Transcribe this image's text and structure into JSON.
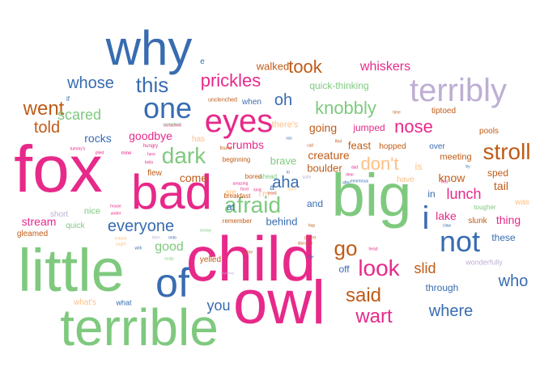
{
  "palette": {
    "pink": "#e7298a",
    "green": "#7fc97f",
    "blue": "#386cb0",
    "purple": "#beaed4",
    "brown": "#bf5b17",
    "orange": "#fdc086",
    "yellow": "#f0e442",
    "grey": "#666666"
  },
  "words": [
    {
      "text": "fox",
      "color": "pink",
      "weight": 82
    },
    {
      "text": "child",
      "color": "pink",
      "weight": 78
    },
    {
      "text": "owl",
      "color": "pink",
      "weight": 76
    },
    {
      "text": "little",
      "color": "green",
      "weight": 74
    },
    {
      "text": "big",
      "color": "green",
      "weight": 74
    },
    {
      "text": "terrible",
      "color": "green",
      "weight": 64
    },
    {
      "text": "bad",
      "color": "pink",
      "weight": 60
    },
    {
      "text": "why",
      "color": "blue",
      "weight": 60
    },
    {
      "text": "of",
      "color": "blue",
      "weight": 50
    },
    {
      "text": "eyes",
      "color": "pink",
      "weight": 40
    },
    {
      "text": "terribly",
      "color": "purple",
      "weight": 40
    },
    {
      "text": "i",
      "color": "blue",
      "weight": 40
    },
    {
      "text": "one",
      "color": "blue",
      "weight": 36
    },
    {
      "text": "not",
      "color": "blue",
      "weight": 36
    },
    {
      "text": "stroll",
      "color": "brown",
      "weight": 28
    },
    {
      "text": "dark",
      "color": "green",
      "weight": 28
    },
    {
      "text": "look",
      "color": "pink",
      "weight": 28
    },
    {
      "text": "afraid",
      "color": "green",
      "weight": 28
    },
    {
      "text": "go",
      "color": "brown",
      "weight": 26
    },
    {
      "text": "this",
      "color": "blue",
      "weight": 26
    },
    {
      "text": "wart",
      "color": "pink",
      "weight": 24
    },
    {
      "text": "said",
      "color": "brown",
      "weight": 24
    },
    {
      "text": "went",
      "color": "brown",
      "weight": 24
    },
    {
      "text": "don't",
      "color": "orange",
      "weight": 22
    },
    {
      "text": "took",
      "color": "brown",
      "weight": 22
    },
    {
      "text": "prickles",
      "color": "pink",
      "weight": 22
    },
    {
      "text": "knobbly",
      "color": "green",
      "weight": 22
    },
    {
      "text": "nose",
      "color": "pink",
      "weight": 22
    },
    {
      "text": "everyone",
      "color": "blue",
      "weight": 20
    },
    {
      "text": "told",
      "color": "brown",
      "weight": 20
    },
    {
      "text": "whose",
      "color": "blue",
      "weight": 20
    },
    {
      "text": "aha",
      "color": "blue",
      "weight": 20
    },
    {
      "text": "oh",
      "color": "blue",
      "weight": 20
    },
    {
      "text": "where",
      "color": "blue",
      "weight": 20
    },
    {
      "text": "who",
      "color": "blue",
      "weight": 20
    },
    {
      "text": "you",
      "color": "blue",
      "weight": 18
    },
    {
      "text": "scared",
      "color": "green",
      "weight": 18
    },
    {
      "text": "lunch",
      "color": "pink",
      "weight": 18
    },
    {
      "text": "slid",
      "color": "brown",
      "weight": 18
    },
    {
      "text": "whiskers",
      "color": "pink",
      "weight": 16
    },
    {
      "text": "good",
      "color": "green",
      "weight": 16
    },
    {
      "text": "goodbye",
      "color": "pink",
      "weight": 14
    },
    {
      "text": "rocks",
      "color": "blue",
      "weight": 14
    },
    {
      "text": "come",
      "color": "brown",
      "weight": 14
    },
    {
      "text": "crumbs",
      "color": "pink",
      "weight": 14
    },
    {
      "text": "creature",
      "color": "brown",
      "weight": 14
    },
    {
      "text": "know",
      "color": "brown",
      "weight": 14
    },
    {
      "text": "lake",
      "color": "pink",
      "weight": 14
    },
    {
      "text": "tail",
      "color": "brown",
      "weight": 14
    },
    {
      "text": "stream",
      "color": "pink",
      "weight": 14
    },
    {
      "text": "going",
      "color": "brown",
      "weight": 14
    },
    {
      "text": "thing",
      "color": "pink",
      "weight": 14
    },
    {
      "text": "behind",
      "color": "blue",
      "weight": 13
    },
    {
      "text": "brave",
      "color": "green",
      "weight": 13
    },
    {
      "text": "boulder",
      "color": "brown",
      "weight": 13
    },
    {
      "text": "feast",
      "color": "brown",
      "weight": 13
    },
    {
      "text": "walked",
      "color": "brown",
      "weight": 13
    },
    {
      "text": "jumped",
      "color": "pink",
      "weight": 12
    },
    {
      "text": "through",
      "color": "blue",
      "weight": 12
    },
    {
      "text": "quick-thinking",
      "color": "green",
      "weight": 12
    },
    {
      "text": "sped",
      "color": "brown",
      "weight": 12
    },
    {
      "text": "these",
      "color": "blue",
      "weight": 12
    },
    {
      "text": "in",
      "color": "blue",
      "weight": 12
    },
    {
      "text": "off",
      "color": "blue",
      "weight": 12
    },
    {
      "text": "and",
      "color": "blue",
      "weight": 12
    },
    {
      "text": "is",
      "color": "orange",
      "weight": 12
    },
    {
      "text": "at",
      "color": "blue",
      "weight": 12
    },
    {
      "text": "nice",
      "color": "green",
      "weight": 11
    },
    {
      "text": "meeting",
      "color": "brown",
      "weight": 11
    },
    {
      "text": "hopped",
      "color": "brown",
      "weight": 10
    },
    {
      "text": "flew",
      "color": "brown",
      "weight": 10
    },
    {
      "text": "short",
      "color": "purple",
      "weight": 10
    },
    {
      "text": "quick",
      "color": "green",
      "weight": 10
    },
    {
      "text": "slunk",
      "color": "brown",
      "weight": 10
    },
    {
      "text": "has",
      "color": "orange",
      "weight": 10
    },
    {
      "text": "have",
      "color": "orange",
      "weight": 10
    },
    {
      "text": "was",
      "color": "orange",
      "weight": 10
    },
    {
      "text": "over",
      "color": "blue",
      "weight": 10
    },
    {
      "text": "are",
      "color": "orange",
      "weight": 10
    },
    {
      "text": "tiptoed",
      "color": "brown",
      "weight": 10
    },
    {
      "text": "when",
      "color": "blue",
      "weight": 10
    },
    {
      "text": "pools",
      "color": "brown",
      "weight": 10
    },
    {
      "text": "there's",
      "color": "orange",
      "weight": 11
    },
    {
      "text": "I'm",
      "color": "orange",
      "weight": 10
    },
    {
      "text": "a",
      "color": "blue",
      "weight": 10
    },
    {
      "text": "e",
      "color": "blue",
      "weight": 10
    },
    {
      "text": "yelled",
      "color": "brown",
      "weight": 10
    },
    {
      "text": "gleamed",
      "color": "brown",
      "weight": 10
    },
    {
      "text": "what",
      "color": "blue",
      "weight": 9
    },
    {
      "text": "what's",
      "color": "orange",
      "weight": 10
    },
    {
      "text": "wonderfully",
      "color": "purple",
      "weight": 9
    },
    {
      "text": "tougher",
      "color": "green",
      "weight": 8
    },
    {
      "text": "remember",
      "color": "brown",
      "weight": 8
    },
    {
      "text": "beginning",
      "color": "brown",
      "weight": 8
    },
    {
      "text": "breakfast",
      "color": "brown",
      "weight": 8
    },
    {
      "text": "bored",
      "color": "brown",
      "weight": 8
    },
    {
      "text": "ahead",
      "color": "green",
      "weight": 8
    },
    {
      "text": "if",
      "color": "blue",
      "weight": 8
    },
    {
      "text": "unclenched",
      "color": "brown",
      "weight": 7
    },
    {
      "text": "scratched",
      "color": "pink",
      "weight": 5
    },
    {
      "text": "amazing",
      "color": "pink",
      "weight": 5
    },
    {
      "text": "kind",
      "color": "pink",
      "weight": 5
    },
    {
      "text": "scaredest",
      "color": "green",
      "weight": 5
    },
    {
      "text": "hungry",
      "color": "pink",
      "weight": 6
    },
    {
      "text": "tummy's",
      "color": "pink",
      "weight": 5
    },
    {
      "text": "plied",
      "color": "pink",
      "weight": 5
    },
    {
      "text": "mine",
      "color": "pink",
      "weight": 6
    },
    {
      "text": "here",
      "color": "pink",
      "weight": 5
    },
    {
      "text": "hello",
      "color": "pink",
      "weight": 5
    },
    {
      "text": "found",
      "color": "brown",
      "weight": 6
    },
    {
      "text": "house",
      "color": "pink",
      "weight": 5
    },
    {
      "text": "under",
      "color": "pink",
      "weight": 5
    },
    {
      "text": "minute",
      "color": "orange",
      "weight": 5
    },
    {
      "text": "ought",
      "color": "orange",
      "weight": 5
    },
    {
      "text": "with",
      "color": "blue",
      "weight": 5
    },
    {
      "text": "then",
      "color": "purple",
      "weight": 5
    },
    {
      "text": "scaly",
      "color": "green",
      "weight": 5
    },
    {
      "text": "onto",
      "color": "blue",
      "weight": 5
    },
    {
      "text": "came",
      "color": "brown",
      "weight": 5
    },
    {
      "text": "frightfully",
      "color": "purple",
      "weight": 4
    },
    {
      "text": "snowy",
      "color": "green",
      "weight": 5
    },
    {
      "text": "discover",
      "color": "brown",
      "weight": 5
    },
    {
      "text": "head",
      "color": "pink",
      "weight": 5
    },
    {
      "text": "hop",
      "color": "brown",
      "weight": 5
    },
    {
      "text": "poked",
      "color": "brown",
      "weight": 5
    },
    {
      "text": "claw",
      "color": "blue",
      "weight": 5
    },
    {
      "text": "by",
      "color": "blue",
      "weight": 5
    },
    {
      "text": "ran",
      "color": "blue",
      "weight": 5
    },
    {
      "text": "quite",
      "color": "purple",
      "weight": 5
    },
    {
      "text": "once",
      "color": "orange",
      "weight": 5
    },
    {
      "text": "call",
      "color": "brown",
      "weight": 5
    },
    {
      "text": "to",
      "color": "blue",
      "weight": 5
    },
    {
      "text": "after",
      "color": "blue",
      "weight": 5
    },
    {
      "text": "enormous",
      "color": "blue",
      "weight": 5
    },
    {
      "text": "dear",
      "color": "pink",
      "weight": 5
    },
    {
      "text": "dad",
      "color": "pink",
      "weight": 5
    },
    {
      "text": "fled",
      "color": "brown",
      "weight": 5
    },
    {
      "text": "food",
      "color": "pink",
      "weight": 5
    },
    {
      "text": "time",
      "color": "brown",
      "weight": 5
    },
    {
      "text": "the",
      "color": "blue",
      "weight": 5
    },
    {
      "text": "first",
      "color": "pink",
      "weight": 5
    },
    {
      "text": "small",
      "color": "green",
      "weight": 5
    },
    {
      "text": "ears",
      "color": "pink",
      "weight": 5
    },
    {
      "text": "know",
      "color": "orange",
      "weight": 5
    }
  ]
}
